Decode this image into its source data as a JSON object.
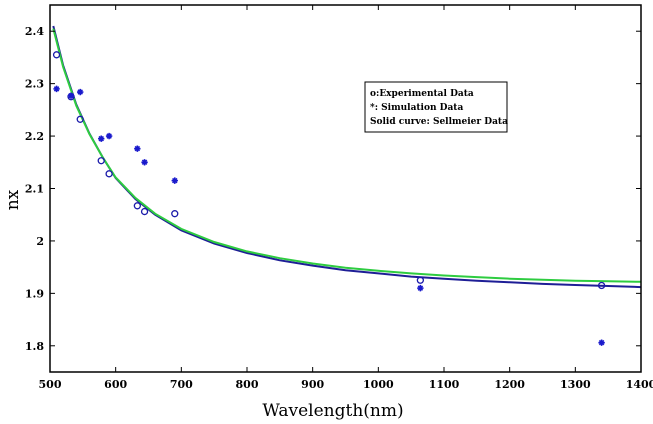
{
  "chart_data": {
    "type": "scatter",
    "title": "",
    "xlabel": "Wavelength(nm)",
    "ylabel": "nx",
    "xlim": [
      500,
      1400
    ],
    "ylim": [
      1.75,
      2.45
    ],
    "xticks": [
      500,
      600,
      700,
      800,
      900,
      1000,
      1100,
      1200,
      1300,
      1400
    ],
    "yticks": [
      1.8,
      1.9,
      2.0,
      2.1,
      2.2,
      2.3,
      2.4
    ],
    "ytick_labels": [
      "1.8",
      "1.9",
      "2",
      "2.1",
      "2.2",
      "2.3",
      "2.4"
    ],
    "grid": false,
    "legend_placement": "upper-right",
    "legend_entries": [
      "o:Experimental Data",
      "*: Simulation Data",
      "Solid curve: Sellmeier Data"
    ],
    "series": [
      {
        "marker": "circle",
        "color": "#1a1aaa",
        "points": [
          {
            "x": 510,
            "y": 2.355
          },
          {
            "x": 532,
            "y": 2.275
          },
          {
            "x": 546,
            "y": 2.232
          },
          {
            "x": 578,
            "y": 2.153
          },
          {
            "x": 590,
            "y": 2.128
          },
          {
            "x": 633,
            "y": 2.067
          },
          {
            "x": 644,
            "y": 2.056
          },
          {
            "x": 690,
            "y": 2.052
          },
          {
            "x": 1064,
            "y": 1.925
          },
          {
            "x": 1340,
            "y": 1.915
          }
        ]
      },
      {
        "marker": "star",
        "color": "#1a1acc",
        "points": [
          {
            "x": 510,
            "y": 2.29
          },
          {
            "x": 532,
            "y": 2.277
          },
          {
            "x": 546,
            "y": 2.284
          },
          {
            "x": 578,
            "y": 2.195
          },
          {
            "x": 590,
            "y": 2.2
          },
          {
            "x": 633,
            "y": 2.176
          },
          {
            "x": 644,
            "y": 2.15
          },
          {
            "x": 690,
            "y": 2.115
          },
          {
            "x": 1064,
            "y": 1.91
          },
          {
            "x": 1340,
            "y": 1.806
          }
        ]
      },
      {
        "marker": "line",
        "color": "#1e1e96",
        "points": [
          {
            "x": 505,
            "y": 2.41
          },
          {
            "x": 520,
            "y": 2.335
          },
          {
            "x": 540,
            "y": 2.26
          },
          {
            "x": 560,
            "y": 2.205
          },
          {
            "x": 580,
            "y": 2.16
          },
          {
            "x": 600,
            "y": 2.12
          },
          {
            "x": 630,
            "y": 2.08
          },
          {
            "x": 660,
            "y": 2.05
          },
          {
            "x": 700,
            "y": 2.02
          },
          {
            "x": 750,
            "y": 1.995
          },
          {
            "x": 800,
            "y": 1.977
          },
          {
            "x": 850,
            "y": 1.963
          },
          {
            "x": 900,
            "y": 1.953
          },
          {
            "x": 950,
            "y": 1.944
          },
          {
            "x": 1000,
            "y": 1.938
          },
          {
            "x": 1050,
            "y": 1.932
          },
          {
            "x": 1100,
            "y": 1.928
          },
          {
            "x": 1150,
            "y": 1.924
          },
          {
            "x": 1200,
            "y": 1.921
          },
          {
            "x": 1250,
            "y": 1.918
          },
          {
            "x": 1300,
            "y": 1.916
          },
          {
            "x": 1350,
            "y": 1.914
          },
          {
            "x": 1400,
            "y": 1.912
          }
        ]
      },
      {
        "marker": "line",
        "color": "#2ecc40",
        "points": [
          {
            "x": 505,
            "y": 2.405
          },
          {
            "x": 520,
            "y": 2.332
          },
          {
            "x": 540,
            "y": 2.258
          },
          {
            "x": 560,
            "y": 2.204
          },
          {
            "x": 580,
            "y": 2.16
          },
          {
            "x": 600,
            "y": 2.121
          },
          {
            "x": 630,
            "y": 2.082
          },
          {
            "x": 660,
            "y": 2.052
          },
          {
            "x": 700,
            "y": 2.023
          },
          {
            "x": 750,
            "y": 1.998
          },
          {
            "x": 800,
            "y": 1.98
          },
          {
            "x": 850,
            "y": 1.967
          },
          {
            "x": 900,
            "y": 1.957
          },
          {
            "x": 950,
            "y": 1.949
          },
          {
            "x": 1000,
            "y": 1.943
          },
          {
            "x": 1050,
            "y": 1.938
          },
          {
            "x": 1100,
            "y": 1.934
          },
          {
            "x": 1150,
            "y": 1.931
          },
          {
            "x": 1200,
            "y": 1.928
          },
          {
            "x": 1250,
            "y": 1.926
          },
          {
            "x": 1300,
            "y": 1.924
          },
          {
            "x": 1350,
            "y": 1.923
          },
          {
            "x": 1400,
            "y": 1.922
          }
        ]
      }
    ]
  }
}
